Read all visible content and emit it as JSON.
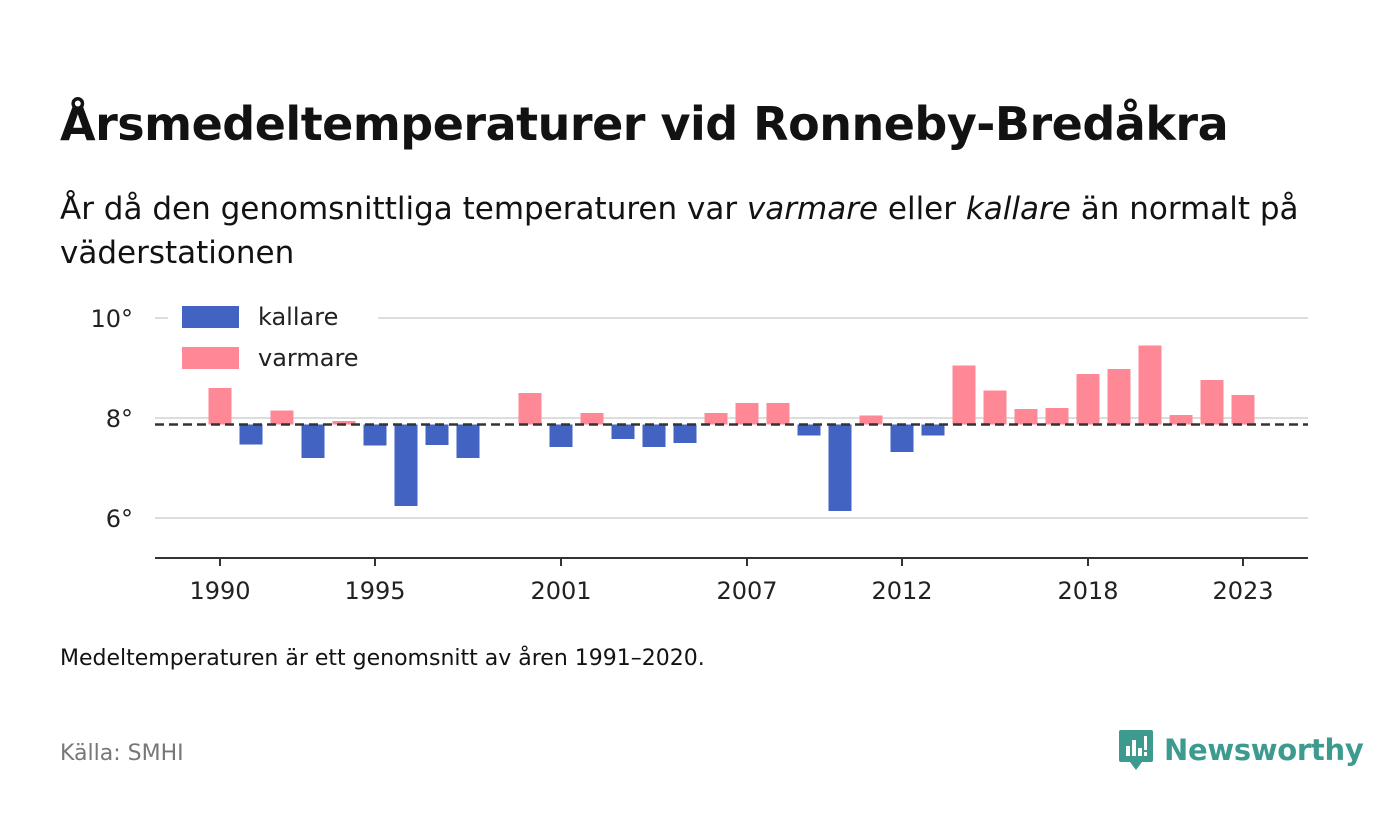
{
  "header": {
    "title": "Årsmedeltemperaturer vid Ronneby-Bredåkra",
    "subtitle_part1": "År då den genomsnittliga temperaturen var ",
    "subtitle_warm": "varmare",
    "subtitle_part2": " eller ",
    "subtitle_cold": "kallare",
    "subtitle_part3": " än normalt på väderstationen"
  },
  "footer": {
    "note": "Medeltemperaturen är ett genomsnitt av åren 1991–2020.",
    "source": "Källa: SMHI",
    "brand": "Newsworthy"
  },
  "colors": {
    "cold": "#4263c2",
    "warm": "#ff8896",
    "baseline": "#333333",
    "grid": "#dddddd",
    "brand": "#3c9a8f"
  },
  "chart_data": {
    "type": "bar",
    "baseline": 7.87,
    "ylim": [
      5.2,
      10.2
    ],
    "y_ticks": [
      6,
      8,
      10
    ],
    "y_tick_labels": [
      "6°",
      "8°",
      "10°"
    ],
    "x_ticks": [
      1990,
      1995,
      2001,
      2007,
      2012,
      2018,
      2023
    ],
    "x_tick_labels": [
      "1990",
      "1995",
      "2001",
      "2007",
      "2012",
      "2018",
      "2023"
    ],
    "legend": [
      {
        "key": "cold",
        "label": "kallare"
      },
      {
        "key": "warm",
        "label": "varmare"
      }
    ],
    "legend_position": "top-left",
    "grid": true,
    "categories": [
      1990,
      1991,
      1992,
      1993,
      1994,
      1995,
      1996,
      1997,
      1998,
      1999,
      2000,
      2001,
      2002,
      2003,
      2004,
      2005,
      2006,
      2007,
      2008,
      2009,
      2010,
      2011,
      2012,
      2013,
      2014,
      2015,
      2016,
      2017,
      2018,
      2019,
      2020,
      2021,
      2022,
      2023
    ],
    "values": [
      8.6,
      7.47,
      8.15,
      7.2,
      7.94,
      7.45,
      6.24,
      7.46,
      7.2,
      null,
      8.5,
      7.42,
      8.1,
      7.58,
      7.42,
      7.5,
      8.1,
      8.3,
      8.3,
      7.65,
      6.14,
      8.05,
      7.32,
      7.65,
      9.05,
      8.55,
      8.18,
      8.2,
      8.88,
      8.98,
      9.45,
      8.06,
      8.76,
      8.46
    ]
  }
}
